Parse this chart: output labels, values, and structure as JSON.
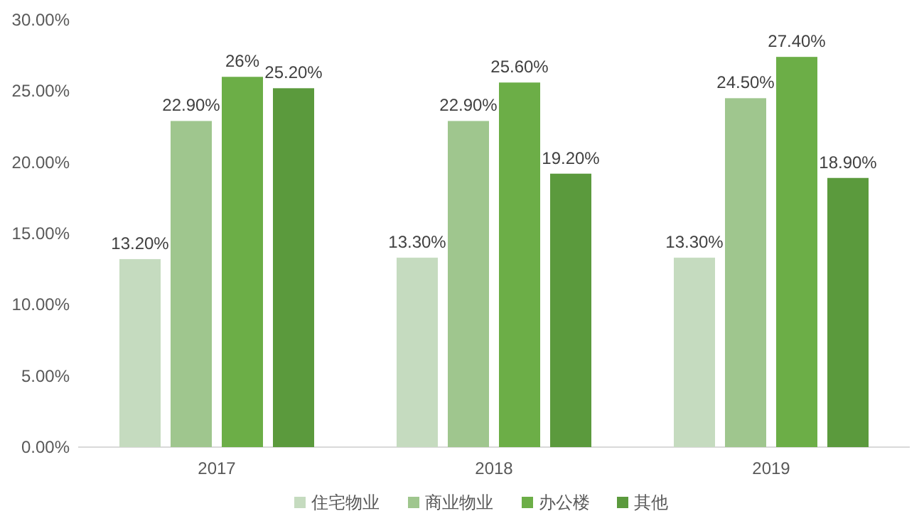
{
  "chart_data": {
    "type": "bar",
    "categories": [
      "2017",
      "2018",
      "2019"
    ],
    "series": [
      {
        "name": "住宅物业",
        "color": "#c5dbbf",
        "values": [
          13.2,
          13.3,
          13.3
        ],
        "value_labels": [
          "13.20%",
          "13.30%",
          "13.30%"
        ]
      },
      {
        "name": "商业物业",
        "color": "#9fc68e",
        "values": [
          22.9,
          22.9,
          24.5
        ],
        "value_labels": [
          "22.90%",
          "22.90%",
          "24.50%"
        ]
      },
      {
        "name": "办公楼",
        "color": "#6cae47",
        "values": [
          26,
          25.6,
          27.4
        ],
        "value_labels": [
          "26%",
          "25.60%",
          "27.40%"
        ]
      },
      {
        "name": "其他",
        "color": "#5b9a3d",
        "values": [
          25.2,
          19.2,
          18.9
        ],
        "value_labels": [
          "25.20%",
          "19.20%",
          "18.90%"
        ]
      }
    ],
    "ylim": [
      0,
      30
    ],
    "yticks": [
      {
        "value": 0,
        "label": "0.00%"
      },
      {
        "value": 5,
        "label": "5.00%"
      },
      {
        "value": 10,
        "label": "10.00%"
      },
      {
        "value": 15,
        "label": "15.00%"
      },
      {
        "value": 20,
        "label": "20.00%"
      },
      {
        "value": 25,
        "label": "25.00%"
      },
      {
        "value": 30,
        "label": "30.00%"
      }
    ],
    "grid": false,
    "legend": "bottom"
  }
}
